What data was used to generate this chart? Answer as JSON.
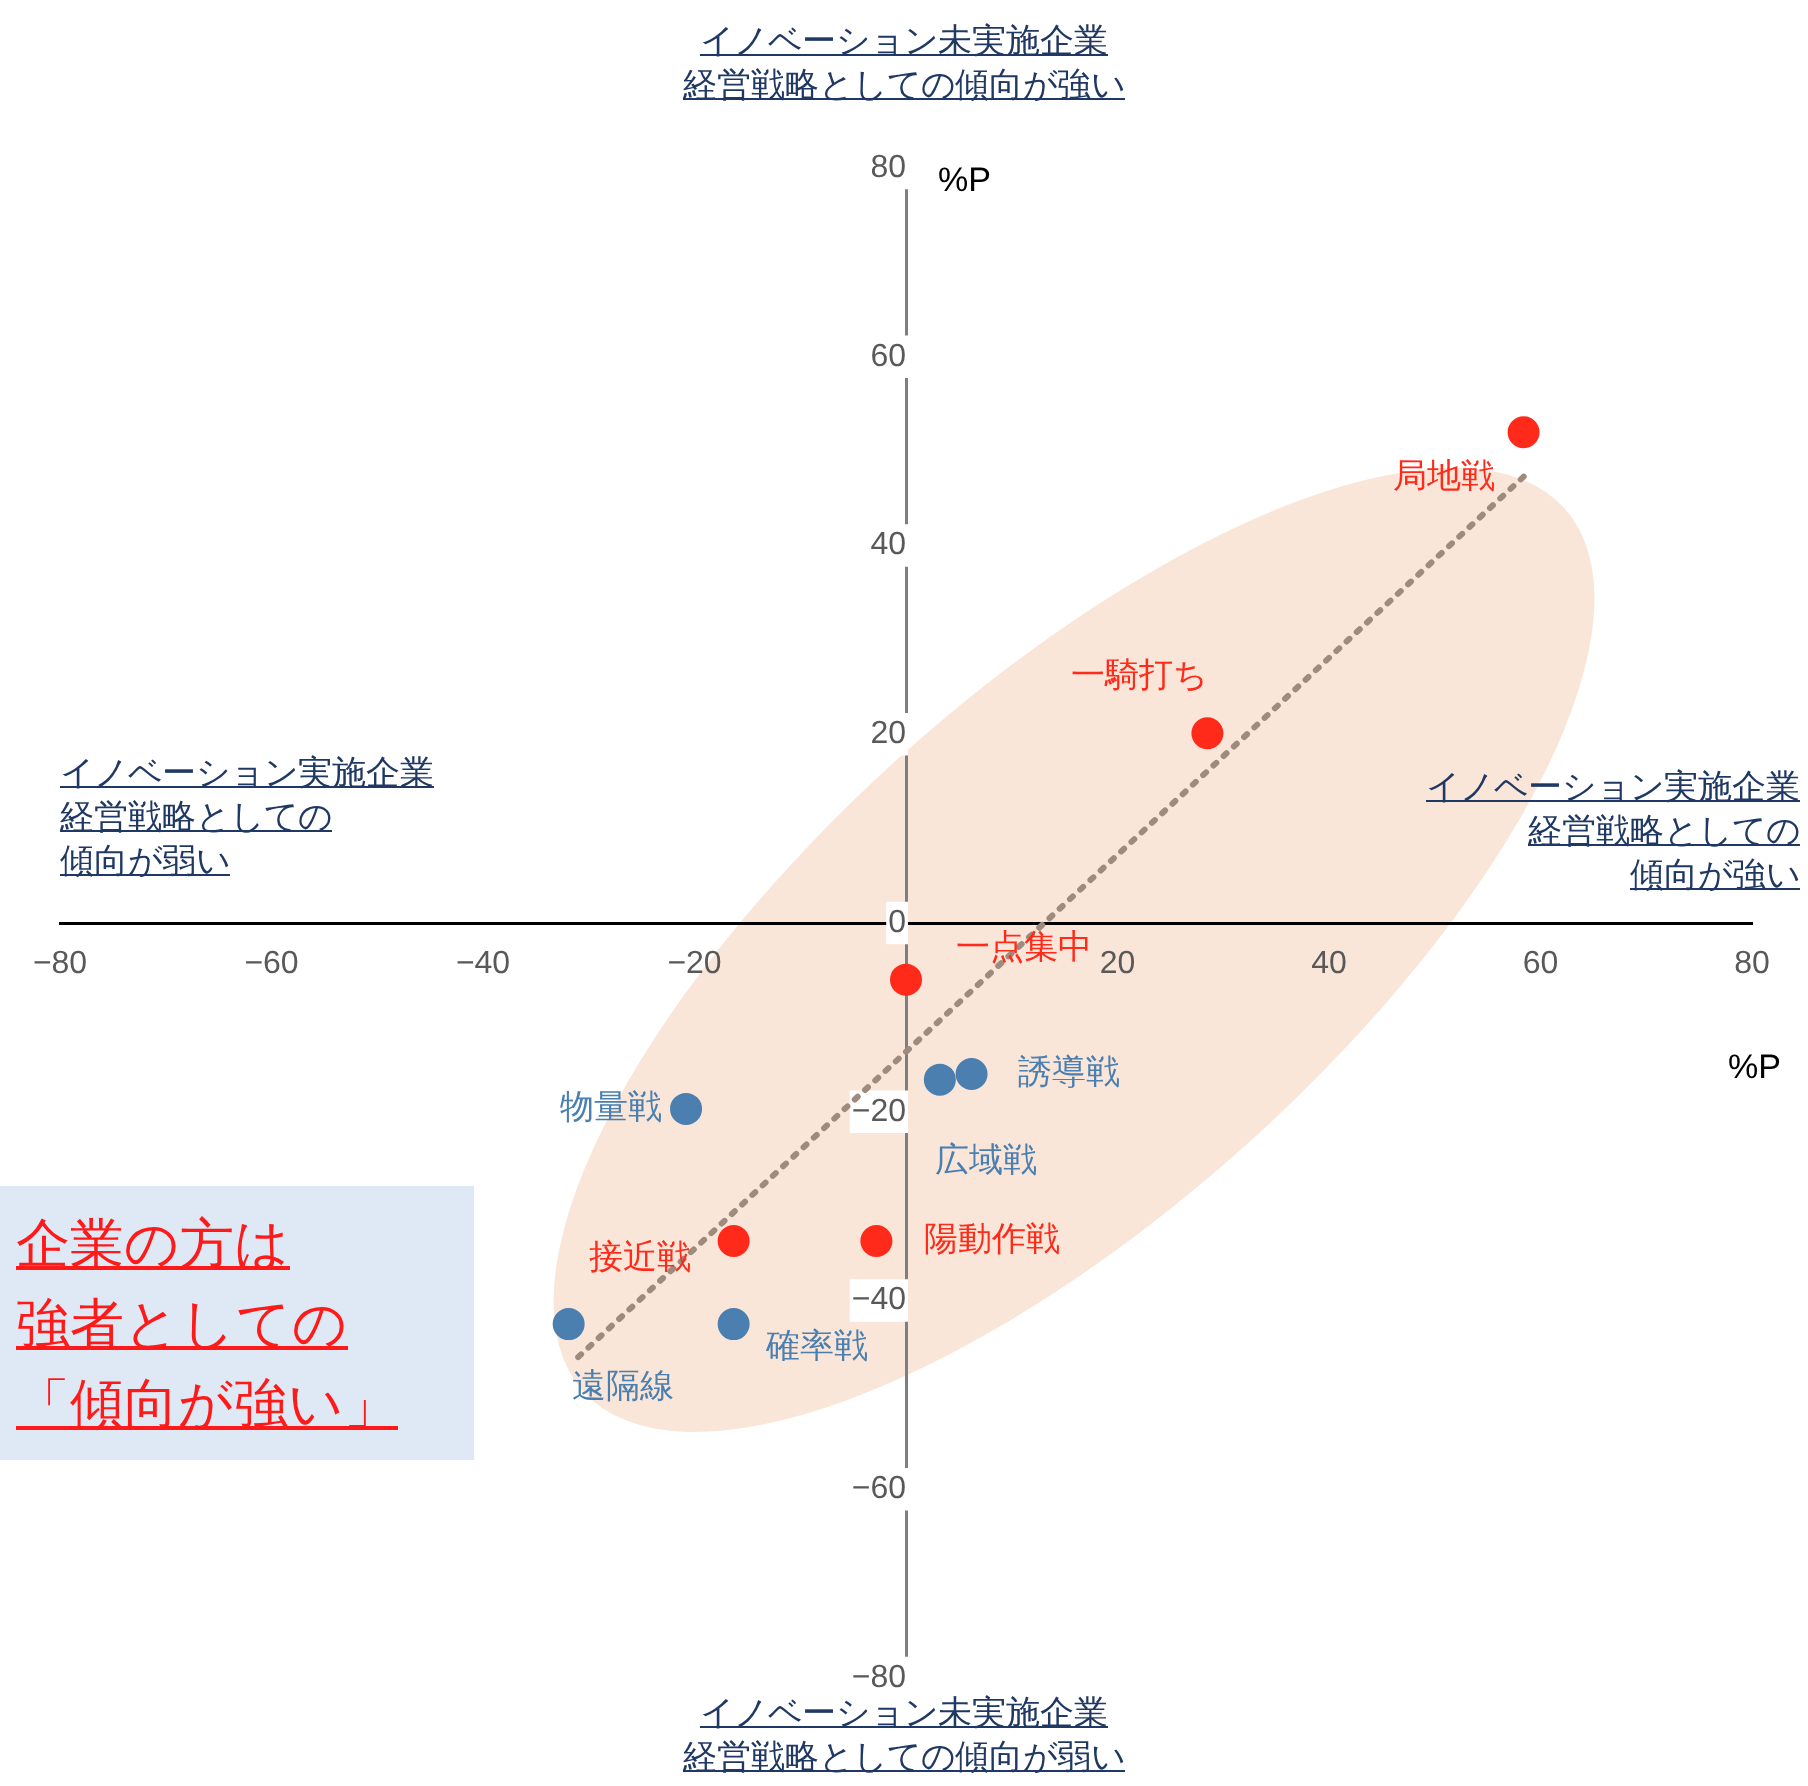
{
  "chart_data": {
    "type": "scatter",
    "xlabel": "%P",
    "ylabel": "%P",
    "xlim": [
      -80,
      80
    ],
    "ylim": [
      -80,
      80
    ],
    "xticks": [
      -80,
      -60,
      -40,
      -20,
      {
        "value": 0,
        "label": null
      },
      20,
      40,
      60,
      80
    ],
    "yticks": [
      -80,
      -60,
      -40,
      -20,
      0,
      20,
      40,
      60,
      80
    ],
    "grid": false,
    "legend": false,
    "marker": "circle",
    "series": [
      {
        "color": "#ff2a1a",
        "x": [
          58.4,
          28.5,
          0,
          -2.8,
          -16.3
        ],
        "values": [
          52,
          20.1,
          -6,
          -33.7,
          -33.7
        ]
      },
      {
        "color": "#4a7fb0",
        "x": [
          6.2,
          3.2,
          -20.8,
          -31.9,
          -16.3
        ],
        "values": [
          -16,
          -16.6,
          -19.7,
          -42.5,
          -42.5
        ]
      },
      {
        "type": "line",
        "color": "#9e8b7e",
        "line_style": "dotted",
        "marker": "none",
        "x": [
          -31,
          58.6
        ],
        "values": [
          -46,
          47.5
        ]
      }
    ],
    "annotations": [
      {
        "text": "局地戦",
        "x": 58.4,
        "y": 52
      },
      {
        "text": "一騎打ち",
        "x": 28.5,
        "y": 20.1
      },
      {
        "text": "一点集中",
        "x": 0,
        "y": -6
      },
      {
        "text": "陽動作戦",
        "x": -2.8,
        "y": -33.7
      },
      {
        "text": "接近戦",
        "x": -16.3,
        "y": -33.7
      },
      {
        "text": "誘導戦",
        "x": 6.2,
        "y": -16
      },
      {
        "text": "広域戦",
        "x": 3.2,
        "y": -16.6
      },
      {
        "text": "物量戦",
        "x": -20.8,
        "y": -19.7
      },
      {
        "text": "遠隔線",
        "x": -31.9,
        "y": -42.5
      },
      {
        "text": "確率戦",
        "x": -16.3,
        "y": -42.5
      },
      "イノベーション未実施企業経営戦略としての傾向が強い",
      "イノベーション実施企業経営戦略としての傾向が強い",
      "イノベーション実施企業経営戦略としての傾向が弱い",
      "イノベーション未実施企業経営戦略としての傾向が弱い",
      "企業の方は強者としての「傾向が強い」"
    ]
  }
}
